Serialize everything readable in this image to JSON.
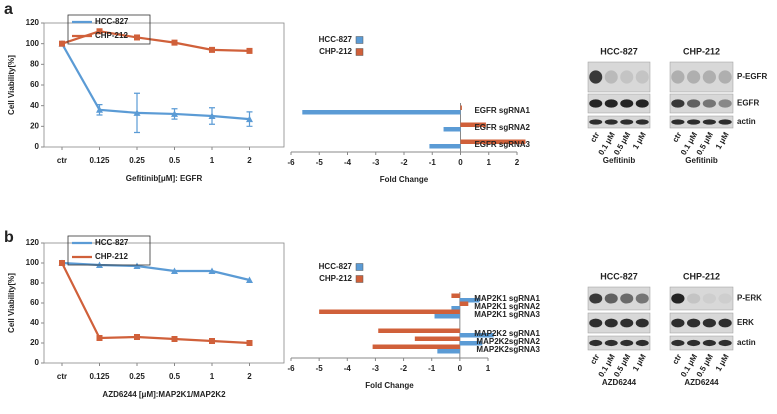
{
  "panel_labels": [
    "a",
    "b"
  ],
  "chart_data": [
    {
      "type": "line",
      "ylabel": "Cell Viability[%]",
      "xlabel": "Gefitinib[μM]: EGFR",
      "categories": [
        "ctr",
        "0.125",
        "0.25",
        "0.5",
        "1",
        "2"
      ],
      "ylim": [
        0,
        120
      ],
      "yticks": [
        0,
        20,
        40,
        60,
        80,
        100,
        120
      ],
      "series": [
        {
          "name": "HCC-827",
          "color": "#5b9bd5",
          "marker": "triangle",
          "values": [
            100,
            36,
            33,
            32,
            30,
            27
          ],
          "errors": [
            0,
            5,
            19,
            5,
            8,
            7
          ]
        },
        {
          "name": "CHP-212",
          "color": "#d0603a",
          "marker": "square",
          "values": [
            100,
            112,
            106,
            101,
            94,
            93
          ]
        }
      ]
    },
    {
      "type": "hbar",
      "xlabel": "Fold Change",
      "categories": [
        "EGFR sgRNA1",
        "EGFR sgRNA2",
        "EGFR sgRNA3"
      ],
      "xlim": [
        -6,
        2
      ],
      "xticks": [
        -6,
        -5,
        -4,
        -3,
        -2,
        -1,
        0,
        1,
        2
      ],
      "series": [
        {
          "name": "HCC-827",
          "color": "#5b9bd5",
          "values": [
            -5.6,
            -0.6,
            -1.1
          ]
        },
        {
          "name": "CHP-212",
          "color": "#d0603a",
          "values": [
            0.05,
            0.9,
            2.3
          ]
        }
      ]
    },
    {
      "type": "line",
      "ylabel": "Cell Viability[%]",
      "xlabel": "AZD6244 [μM]:MAP2K1/MAP2K2",
      "categories": [
        "ctr",
        "0.125",
        "0.25",
        "0.5",
        "1",
        "2"
      ],
      "ylim": [
        0,
        120
      ],
      "yticks": [
        0,
        20,
        40,
        60,
        80,
        100,
        120
      ],
      "series": [
        {
          "name": "HCC-827",
          "color": "#5b9bd5",
          "marker": "triangle",
          "values": [
            100,
            98,
            97,
            92,
            92,
            83
          ]
        },
        {
          "name": "CHP-212",
          "color": "#d0603a",
          "marker": "square",
          "values": [
            100,
            25,
            26,
            24,
            22,
            20
          ]
        }
      ]
    },
    {
      "type": "hbar",
      "xlabel": "Fold Change",
      "categories": [
        "MAP2K1 sgRNA1",
        "MAP2K1 sgRNA2",
        "MAP2K1 sgRNA3",
        "MAP2K2 sgRNA1",
        "MAP2K2sgRNA2",
        "MAP2K2sgRNA3"
      ],
      "xlim": [
        -6,
        1
      ],
      "xticks": [
        -6,
        -5,
        -4,
        -3,
        -2,
        -1,
        0,
        1
      ],
      "series": [
        {
          "name": "HCC-827",
          "color": "#5b9bd5",
          "values": [
            0.7,
            -0.3,
            -0.9,
            1.2,
            0.8,
            -0.8
          ]
        },
        {
          "name": "CHP-212",
          "color": "#d0603a",
          "values": [
            -0.3,
            0.3,
            -5.0,
            -2.9,
            -1.6,
            -3.1
          ]
        }
      ]
    }
  ],
  "blots": [
    {
      "headers": [
        "HCC-827",
        "CHP-212"
      ],
      "rows": [
        "P-EGFR",
        "EGFR",
        "actin"
      ],
      "lanes": [
        "ctr",
        "0.1 μM",
        "0.5 μM",
        "1 μM"
      ],
      "drug": "Gefitinib"
    },
    {
      "headers": [
        "HCC-827",
        "CHP-212"
      ],
      "rows": [
        "P-ERK",
        "ERK",
        "actin"
      ],
      "lanes": [
        "ctr",
        "0.1 μM",
        "0.5 μM",
        "1 μM"
      ],
      "drug": "AZD6244"
    }
  ]
}
